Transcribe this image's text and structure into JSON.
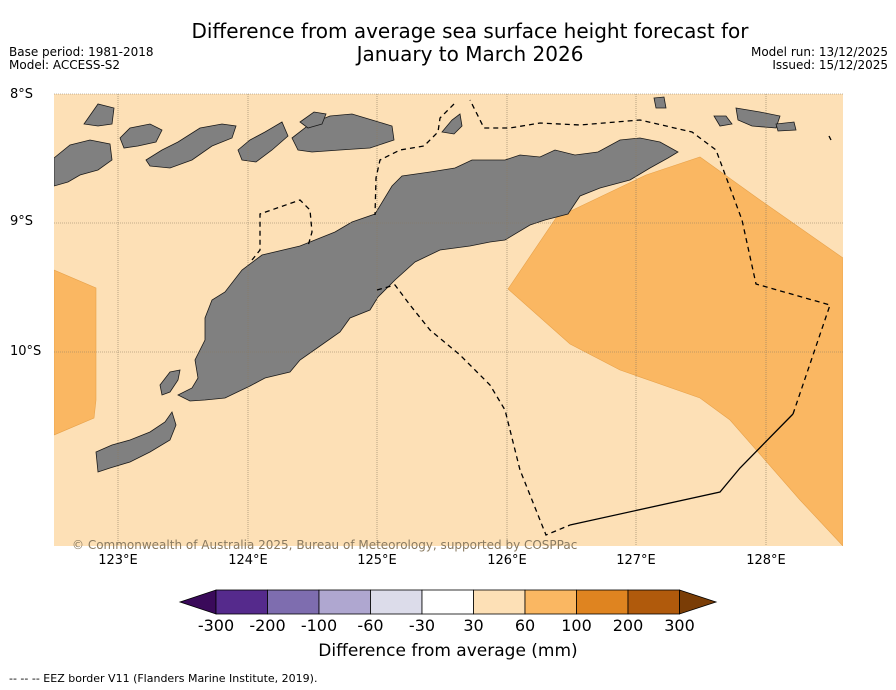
{
  "title": {
    "line1": "Difference from average sea surface height forecast for",
    "line2": "January to March 2026"
  },
  "meta": {
    "base_period": "Base period: 1981-2018",
    "model": "Model: ACCESS-S2",
    "model_run": "Model run: 13/12/2025",
    "issued": "Issued: 15/12/2025"
  },
  "map": {
    "lat_labels": [
      "8°S",
      "9°S",
      "10°S"
    ],
    "lon_labels": [
      "123°E",
      "124°E",
      "125°E",
      "126°E",
      "127°E",
      "128°E"
    ],
    "copyright": "© Commonwealth of Australia 2025, Bureau of Meteorology, supported by COSPPac",
    "colors": {
      "background": "#fde0b6",
      "anomaly_60_100": "#fab762",
      "land": "#808080"
    }
  },
  "colorbar": {
    "ticks": [
      "-300",
      "-200",
      "-100",
      "-60",
      "-30",
      "30",
      "60",
      "100",
      "200",
      "300"
    ],
    "colors": [
      "#3a0a5a",
      "#552a8c",
      "#7e6daf",
      "#afa7d0",
      "#dcdcea",
      "#ffffff",
      "#fde0b6",
      "#fab762",
      "#df8420",
      "#b05a0c",
      "#7a3d06"
    ],
    "label": "Difference from average (mm)"
  },
  "footnote": "--  --  -- EEZ border V11 (Flanders Marine Institute, 2019)."
}
